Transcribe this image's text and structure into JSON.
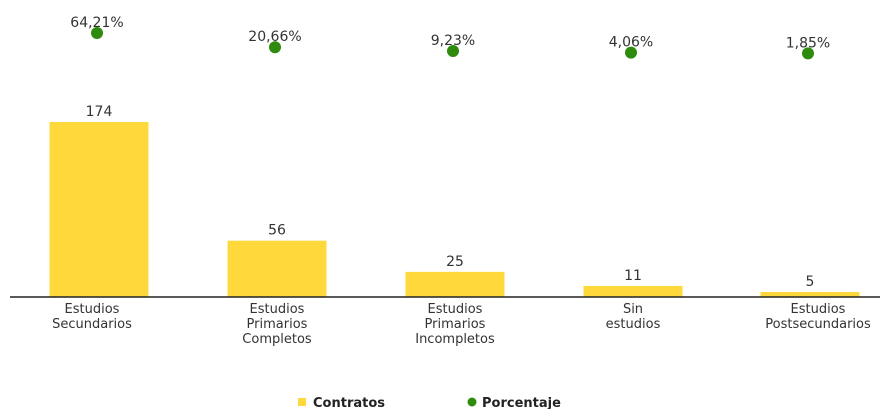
{
  "chart_data": {
    "type": "bar",
    "categories": [
      [
        "Estudios",
        "Secundarios"
      ],
      [
        "Estudios",
        "Primarios",
        "Completos"
      ],
      [
        "Estudios",
        "Primarios",
        "Incompletos"
      ],
      [
        "Sin",
        "estudios"
      ],
      [
        "Estudios",
        "Postsecundarios"
      ]
    ],
    "series": [
      {
        "name": "Contratos",
        "type": "bar",
        "values": [
          174,
          56,
          25,
          11,
          5
        ],
        "labels": [
          "174",
          "56",
          "25",
          "11",
          "5"
        ],
        "color": "#FFD93B"
      },
      {
        "name": "Porcentaje",
        "type": "scatter",
        "values": [
          64.21,
          20.66,
          9.23,
          4.06,
          1.85
        ],
        "labels": [
          "64,21%",
          "20,66%",
          "9,23%",
          "4,06%",
          "1,85%"
        ],
        "color": "#2E8B0E"
      }
    ],
    "ylim": [
      0,
      174
    ],
    "pct_ylim": [
      0,
      64.21
    ],
    "grid": false,
    "legend_position": "bottom"
  }
}
